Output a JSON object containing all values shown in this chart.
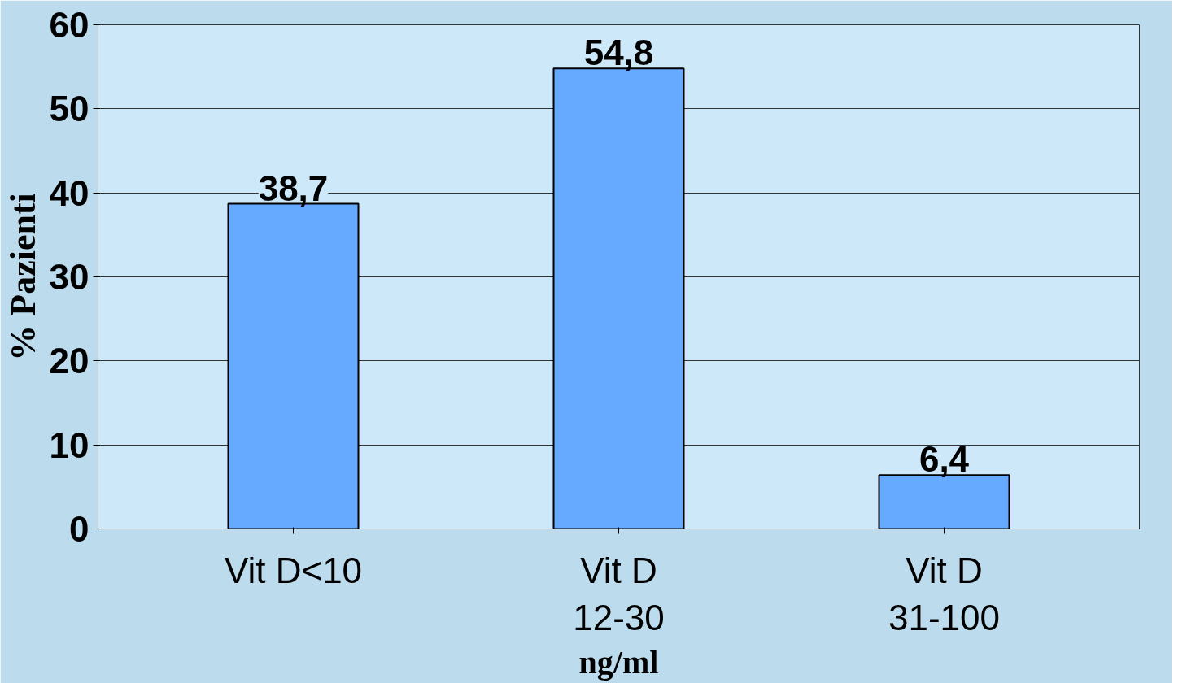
{
  "chart_data": {
    "type": "bar",
    "categories": [
      "Vit D<10",
      "Vit D\n12-30",
      "Vit D\n31-100"
    ],
    "values": [
      38.7,
      54.8,
      6.4
    ],
    "value_labels": [
      "38,7",
      "54,8",
      "6,4"
    ],
    "color": "#66aaff",
    "ylabel": "% Pazienti",
    "xlabel": "ng/ml",
    "ylim": [
      0,
      60
    ],
    "yticks": [
      0,
      10,
      20,
      30,
      40,
      50,
      60
    ],
    "grid": "y"
  }
}
